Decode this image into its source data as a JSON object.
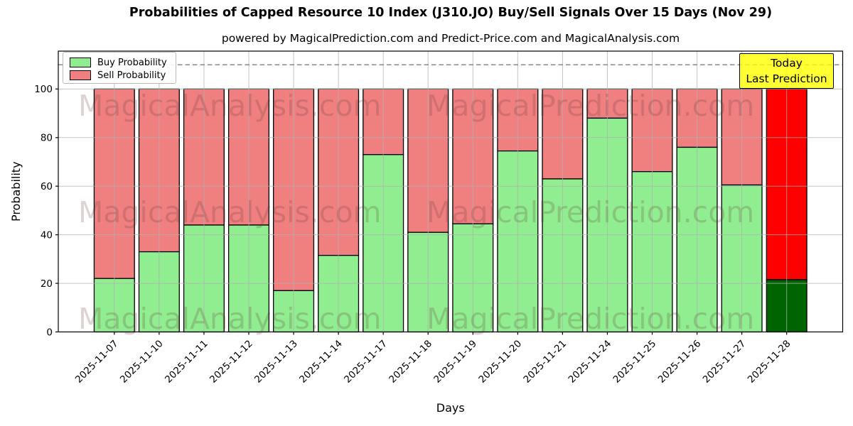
{
  "header": {
    "title": "Probabilities of Capped Resource 10 Index (J310.JO) Buy/Sell Signals Over 15 Days (Nov 29)",
    "subtitle": "powered by MagicalPrediction.com and Predict-Price.com and MagicalAnalysis.com"
  },
  "legend": {
    "position": "upper left",
    "items": [
      {
        "label": "Buy Probability",
        "color": "#90EE90"
      },
      {
        "label": "Sell Probability",
        "color": "#F08080"
      }
    ]
  },
  "annotation": {
    "line1": "Today",
    "line2": "Last Prediction",
    "bg_color": "#FFFF00",
    "bg_opacity": 0.8
  },
  "watermarks": {
    "left_text": "MagicalAnalysis.com",
    "right_text": "MagicalPrediction.com"
  },
  "chart_data": {
    "type": "bar",
    "stacked": true,
    "title": "Probabilities of Capped Resource 10 Index (J310.JO) Buy/Sell Signals Over 15 Days (Nov 29)",
    "xlabel": "Days",
    "ylabel": "Probability",
    "categories": [
      "2025-11-07",
      "2025-11-10",
      "2025-11-11",
      "2025-11-12",
      "2025-11-13",
      "2025-11-14",
      "2025-11-17",
      "2025-11-18",
      "2025-11-19",
      "2025-11-20",
      "2025-11-21",
      "2025-11-24",
      "2025-11-25",
      "2025-11-26",
      "2025-11-27",
      "2025-11-28"
    ],
    "series": [
      {
        "name": "Buy Probability",
        "color": "#90EE90",
        "values": [
          22,
          33,
          44,
          44,
          17,
          31.5,
          73,
          41,
          44.5,
          74.5,
          63,
          88,
          66,
          76,
          60.5,
          21.5
        ]
      },
      {
        "name": "Sell Probability",
        "color": "#F08080",
        "values": [
          78,
          67,
          56,
          56,
          83,
          68.5,
          27,
          59,
          55.5,
          25.5,
          37,
          12,
          34,
          24,
          39.5,
          78.5
        ]
      }
    ],
    "today_index": 15,
    "today_colors": {
      "buy": "#006400",
      "sell": "#FF0000"
    },
    "bar_edge_color": "#000000",
    "yticks": [
      0,
      20,
      40,
      60,
      80,
      100
    ],
    "ylim": [
      0,
      115.6
    ],
    "dashed_line_y": 110,
    "dashed_line_color": "#7f7f7f",
    "grid": true,
    "grid_color": "#b0b0b0"
  }
}
